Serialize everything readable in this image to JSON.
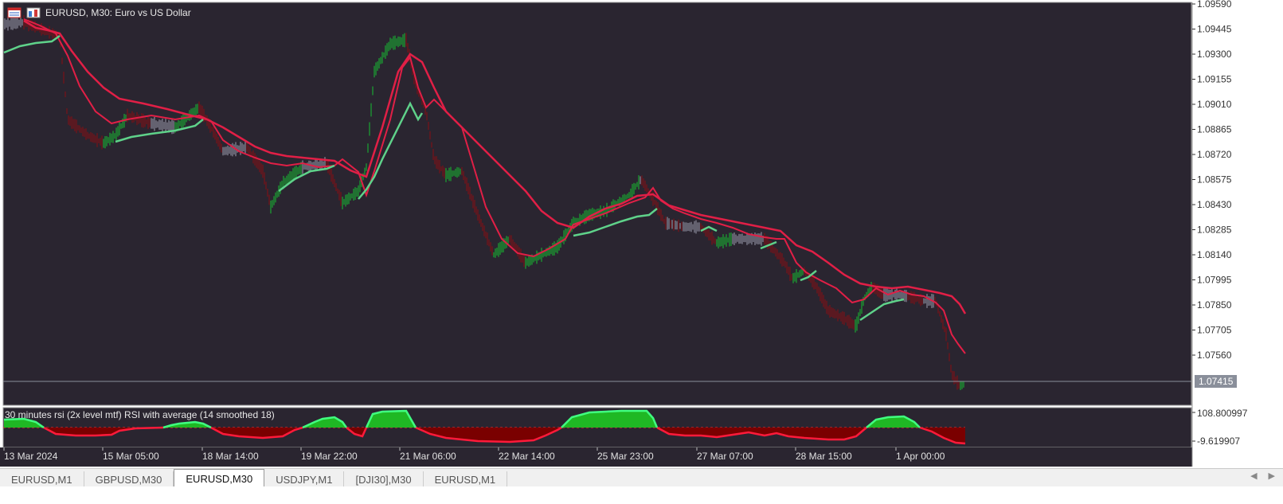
{
  "window": {
    "symbol_title": "EURUSD, M30:  Euro vs US Dollar",
    "indicator_title": "30 minutes rsi (2x level mtf) RSI with average (14 smoothed 18)"
  },
  "price_axis": {
    "labels": [
      "1.09590",
      "1.09445",
      "1.09300",
      "1.09155",
      "1.09010",
      "1.08865",
      "1.08720",
      "1.08575",
      "1.08430",
      "1.08285",
      "1.08140",
      "1.07995",
      "1.07850",
      "1.07705",
      "1.07560"
    ],
    "current_price": "1.07415"
  },
  "indicator_axis": {
    "top_label": "108.800997",
    "bottom_label": "-9.619907"
  },
  "time_axis": {
    "labels": [
      "13 Mar 2024",
      "15 Mar 05:00",
      "18 Mar 14:00",
      "19 Mar 22:00",
      "21 Mar 06:00",
      "22 Mar 14:00",
      "25 Mar 23:00",
      "27 Mar 07:00",
      "28 Mar 15:00",
      "1 Apr 00:00"
    ]
  },
  "tabs": [
    {
      "label": "EURUSD,M1",
      "active": false
    },
    {
      "label": "GBPUSD,M30",
      "active": false
    },
    {
      "label": "EURUSD,M30",
      "active": true
    },
    {
      "label": "USDJPY,M1",
      "active": false
    },
    {
      "label": "[DJI30],M30",
      "active": false
    },
    {
      "label": "EURUSD,M1",
      "active": false
    }
  ],
  "icons": {
    "left": "chart-window-icon",
    "right": "one-click-trading-icon",
    "scroll_left": "scroll-left-icon",
    "scroll_right": "scroll-right-icon"
  },
  "colors": {
    "background": "#2a2530",
    "upper_band": "#e11f46",
    "lower_band": "#5fd28a",
    "bull_candle": "#1aa632",
    "bear_candle": "#7a1218",
    "neutral_candle": "#8a8a9a",
    "rsi_bull": "#00c800",
    "rsi_bear": "#7a0000",
    "rsi_line_bull": "#40ff80",
    "rsi_line_bear": "#ff1a3a"
  }
}
